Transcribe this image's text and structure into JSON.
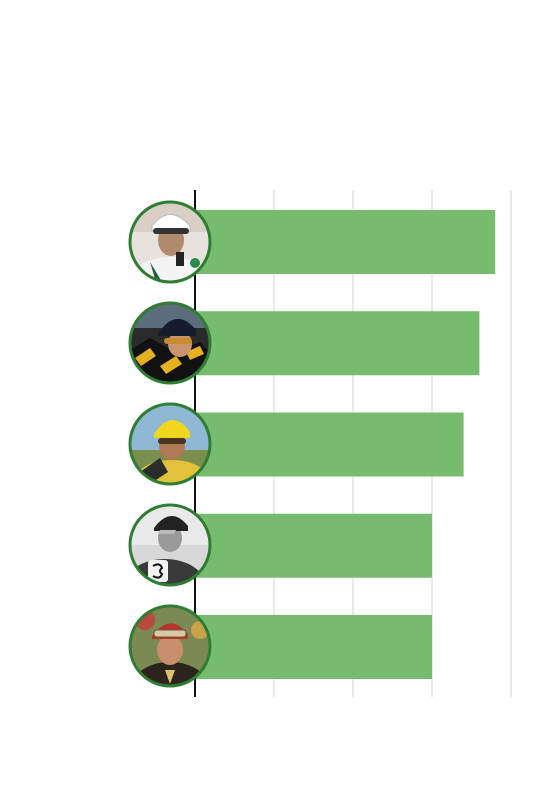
{
  "chart_data": {
    "type": "bar",
    "orientation": "horizontal",
    "categories": [
      "",
      "",
      "",
      "",
      ""
    ],
    "values": [
      9.5,
      9,
      8.5,
      7.5,
      7.5
    ],
    "xlim": [
      0,
      10
    ],
    "gridlines": [
      2.5,
      5,
      7.5,
      10
    ],
    "grid": true,
    "title": "",
    "xlabel": "",
    "ylabel": "",
    "bar_color": "#77bb6f",
    "avatar_ring_color": "#2f7d32",
    "avatar_icons": [
      "jockey-white-helmet-icon",
      "jockey-black-helmet-icon",
      "jockey-yellow-helmet-icon",
      "jockey-vintage-bw-icon",
      "jockey-red-cap-icon"
    ]
  }
}
